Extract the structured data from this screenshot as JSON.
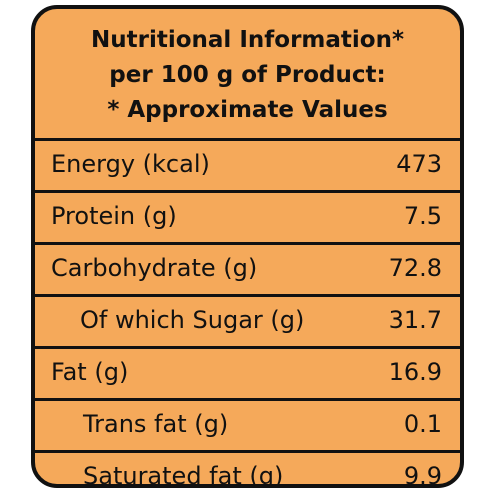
{
  "header": {
    "line1": "Nutritional Information*",
    "line2": "per 100 g of Product:",
    "line3": "* Approximate Values"
  },
  "rows": [
    {
      "label": "Energy (kcal)",
      "value": "473"
    },
    {
      "label": "Protein (g)",
      "value": "7.5"
    },
    {
      "label": "Carbohydrate (g)",
      "value": "72.8"
    },
    {
      "label": "Of which Sugar (g)",
      "value": "31.7"
    },
    {
      "label": "Fat (g)",
      "value": "16.9"
    },
    {
      "label": "Trans fat (g)",
      "value": "0.1"
    },
    {
      "label": "Saturated fat (g)",
      "value": "9.9"
    }
  ],
  "colors": {
    "panel_background": "#f5a95a",
    "border": "#111111",
    "text": "#111111"
  }
}
